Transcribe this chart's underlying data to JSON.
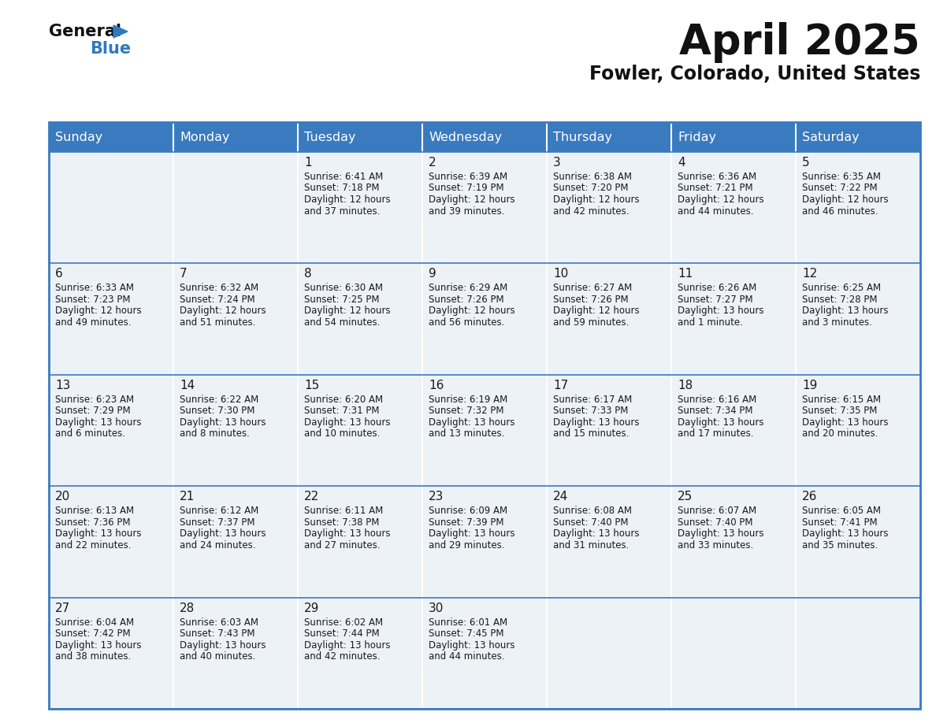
{
  "title": "April 2025",
  "subtitle": "Fowler, Colorado, United States",
  "header_color": "#3a7abf",
  "header_text_color": "#ffffff",
  "day_names": [
    "Sunday",
    "Monday",
    "Tuesday",
    "Wednesday",
    "Thursday",
    "Friday",
    "Saturday"
  ],
  "cell_bg_color": "#edf2f7",
  "border_color": "#3a7abf",
  "text_color": "#1a1a1a",
  "days": [
    {
      "day": 1,
      "col": 2,
      "row": 0,
      "sunrise": "6:41 AM",
      "sunset": "7:18 PM",
      "daylight": "12 hours",
      "daylight2": "and 37 minutes."
    },
    {
      "day": 2,
      "col": 3,
      "row": 0,
      "sunrise": "6:39 AM",
      "sunset": "7:19 PM",
      "daylight": "12 hours",
      "daylight2": "and 39 minutes."
    },
    {
      "day": 3,
      "col": 4,
      "row": 0,
      "sunrise": "6:38 AM",
      "sunset": "7:20 PM",
      "daylight": "12 hours",
      "daylight2": "and 42 minutes."
    },
    {
      "day": 4,
      "col": 5,
      "row": 0,
      "sunrise": "6:36 AM",
      "sunset": "7:21 PM",
      "daylight": "12 hours",
      "daylight2": "and 44 minutes."
    },
    {
      "day": 5,
      "col": 6,
      "row": 0,
      "sunrise": "6:35 AM",
      "sunset": "7:22 PM",
      "daylight": "12 hours",
      "daylight2": "and 46 minutes."
    },
    {
      "day": 6,
      "col": 0,
      "row": 1,
      "sunrise": "6:33 AM",
      "sunset": "7:23 PM",
      "daylight": "12 hours",
      "daylight2": "and 49 minutes."
    },
    {
      "day": 7,
      "col": 1,
      "row": 1,
      "sunrise": "6:32 AM",
      "sunset": "7:24 PM",
      "daylight": "12 hours",
      "daylight2": "and 51 minutes."
    },
    {
      "day": 8,
      "col": 2,
      "row": 1,
      "sunrise": "6:30 AM",
      "sunset": "7:25 PM",
      "daylight": "12 hours",
      "daylight2": "and 54 minutes."
    },
    {
      "day": 9,
      "col": 3,
      "row": 1,
      "sunrise": "6:29 AM",
      "sunset": "7:26 PM",
      "daylight": "12 hours",
      "daylight2": "and 56 minutes."
    },
    {
      "day": 10,
      "col": 4,
      "row": 1,
      "sunrise": "6:27 AM",
      "sunset": "7:26 PM",
      "daylight": "12 hours",
      "daylight2": "and 59 minutes."
    },
    {
      "day": 11,
      "col": 5,
      "row": 1,
      "sunrise": "6:26 AM",
      "sunset": "7:27 PM",
      "daylight": "13 hours",
      "daylight2": "and 1 minute."
    },
    {
      "day": 12,
      "col": 6,
      "row": 1,
      "sunrise": "6:25 AM",
      "sunset": "7:28 PM",
      "daylight": "13 hours",
      "daylight2": "and 3 minutes."
    },
    {
      "day": 13,
      "col": 0,
      "row": 2,
      "sunrise": "6:23 AM",
      "sunset": "7:29 PM",
      "daylight": "13 hours",
      "daylight2": "and 6 minutes."
    },
    {
      "day": 14,
      "col": 1,
      "row": 2,
      "sunrise": "6:22 AM",
      "sunset": "7:30 PM",
      "daylight": "13 hours",
      "daylight2": "and 8 minutes."
    },
    {
      "day": 15,
      "col": 2,
      "row": 2,
      "sunrise": "6:20 AM",
      "sunset": "7:31 PM",
      "daylight": "13 hours",
      "daylight2": "and 10 minutes."
    },
    {
      "day": 16,
      "col": 3,
      "row": 2,
      "sunrise": "6:19 AM",
      "sunset": "7:32 PM",
      "daylight": "13 hours",
      "daylight2": "and 13 minutes."
    },
    {
      "day": 17,
      "col": 4,
      "row": 2,
      "sunrise": "6:17 AM",
      "sunset": "7:33 PM",
      "daylight": "13 hours",
      "daylight2": "and 15 minutes."
    },
    {
      "day": 18,
      "col": 5,
      "row": 2,
      "sunrise": "6:16 AM",
      "sunset": "7:34 PM",
      "daylight": "13 hours",
      "daylight2": "and 17 minutes."
    },
    {
      "day": 19,
      "col": 6,
      "row": 2,
      "sunrise": "6:15 AM",
      "sunset": "7:35 PM",
      "daylight": "13 hours",
      "daylight2": "and 20 minutes."
    },
    {
      "day": 20,
      "col": 0,
      "row": 3,
      "sunrise": "6:13 AM",
      "sunset": "7:36 PM",
      "daylight": "13 hours",
      "daylight2": "and 22 minutes."
    },
    {
      "day": 21,
      "col": 1,
      "row": 3,
      "sunrise": "6:12 AM",
      "sunset": "7:37 PM",
      "daylight": "13 hours",
      "daylight2": "and 24 minutes."
    },
    {
      "day": 22,
      "col": 2,
      "row": 3,
      "sunrise": "6:11 AM",
      "sunset": "7:38 PM",
      "daylight": "13 hours",
      "daylight2": "and 27 minutes."
    },
    {
      "day": 23,
      "col": 3,
      "row": 3,
      "sunrise": "6:09 AM",
      "sunset": "7:39 PM",
      "daylight": "13 hours",
      "daylight2": "and 29 minutes."
    },
    {
      "day": 24,
      "col": 4,
      "row": 3,
      "sunrise": "6:08 AM",
      "sunset": "7:40 PM",
      "daylight": "13 hours",
      "daylight2": "and 31 minutes."
    },
    {
      "day": 25,
      "col": 5,
      "row": 3,
      "sunrise": "6:07 AM",
      "sunset": "7:40 PM",
      "daylight": "13 hours",
      "daylight2": "and 33 minutes."
    },
    {
      "day": 26,
      "col": 6,
      "row": 3,
      "sunrise": "6:05 AM",
      "sunset": "7:41 PM",
      "daylight": "13 hours",
      "daylight2": "and 35 minutes."
    },
    {
      "day": 27,
      "col": 0,
      "row": 4,
      "sunrise": "6:04 AM",
      "sunset": "7:42 PM",
      "daylight": "13 hours",
      "daylight2": "and 38 minutes."
    },
    {
      "day": 28,
      "col": 1,
      "row": 4,
      "sunrise": "6:03 AM",
      "sunset": "7:43 PM",
      "daylight": "13 hours",
      "daylight2": "and 40 minutes."
    },
    {
      "day": 29,
      "col": 2,
      "row": 4,
      "sunrise": "6:02 AM",
      "sunset": "7:44 PM",
      "daylight": "13 hours",
      "daylight2": "and 42 minutes."
    },
    {
      "day": 30,
      "col": 3,
      "row": 4,
      "sunrise": "6:01 AM",
      "sunset": "7:45 PM",
      "daylight": "13 hours",
      "daylight2": "and 44 minutes."
    }
  ]
}
